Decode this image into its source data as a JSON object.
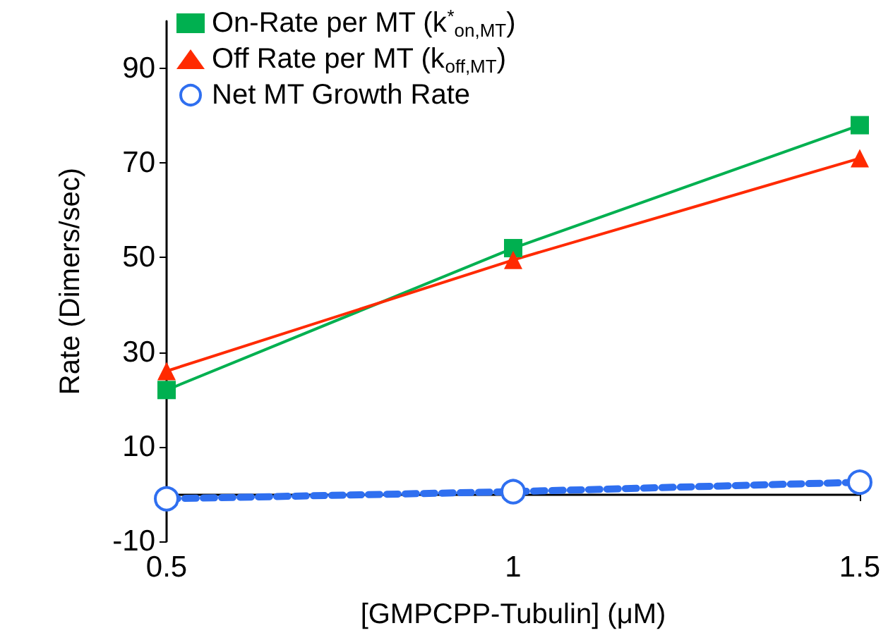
{
  "chart_data": {
    "type": "line",
    "xlabel": "[GMPCPP-Tubulin] (μM)",
    "ylabel": "Rate (Dimers/sec)",
    "x": [
      0.5,
      1,
      1.5
    ],
    "series": [
      {
        "name": "On-Rate per MT (k$^{*}$$_{on,MT}$)",
        "color": "#00b050",
        "marker": "square",
        "line_style": "solid",
        "values": [
          22,
          52,
          78
        ]
      },
      {
        "name": "Off Rate per MT (k$_{off,MT}$)",
        "color": "#ff2a00",
        "marker": "triangle",
        "line_style": "solid",
        "values": [
          26,
          49.5,
          71
        ]
      },
      {
        "name": "Net MT Growth Rate",
        "color": "#2f6ff0",
        "marker": "circle",
        "line_style": "dashed",
        "values": [
          -1,
          0.5,
          2.5
        ]
      }
    ],
    "xlim": [
      0.5,
      1.5
    ],
    "xticks": [
      0.5,
      1,
      1.5
    ],
    "ylim": [
      -10,
      100
    ],
    "yticks": [
      -10,
      10,
      30,
      50,
      70,
      90
    ],
    "grid": false,
    "legend": "top left"
  }
}
